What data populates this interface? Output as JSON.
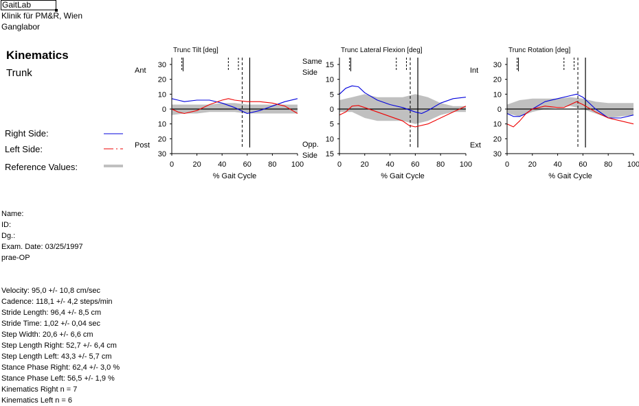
{
  "header": {
    "lab": "GaitLab",
    "clinic": "Klinik für PM&R, Wien",
    "department": "Ganglabor"
  },
  "section": {
    "title": "Kinematics",
    "subtitle": "Trunk"
  },
  "legend": {
    "right": "Right Side:",
    "left": "Left Side:",
    "reference": "Reference Values:"
  },
  "colors": {
    "right": "#0000dd",
    "left": "#ee0000",
    "reference": "#c0c0c0"
  },
  "patient": [
    "Name:",
    "ID:",
    "Dg.:",
    "Exam. Date: 03/25/1997",
    "prae-OP"
  ],
  "parameters": [
    "Velocity: 95,0 +/- 10,8 cm/sec",
    "Cadence: 118,1 +/- 4,2 steps/min",
    "Stride Length:  96,4 +/- 8,5 cm",
    "Stride Time:  1,02 +/- 0,04 sec",
    "Step Width: 20,6 +/- 6,6 cm",
    "Step Length Right:  52,7 +/- 6,4 cm",
    "Step Length Left:  43,3 +/- 5,7 cm",
    "Stance Phase Right:  62,4 +/- 3,0 %",
    "Stance Phase Left:  56,5 +/- 1,9 %",
    "Kinematics Right n = 7",
    "Kinematics Left n = 6"
  ],
  "chart_data": [
    {
      "type": "line",
      "title": "Trunc Tilt [deg]",
      "xlabel": "% Gait Cycle",
      "xlim": [
        0,
        100
      ],
      "ylim": [
        -30,
        30
      ],
      "yticks": [
        30,
        20,
        10,
        0,
        -10,
        -20,
        -30
      ],
      "ytick_labels": [
        "30",
        "20",
        "10",
        "0",
        "10",
        "20",
        "30"
      ],
      "xticks": [
        0,
        20,
        40,
        60,
        80,
        100
      ],
      "ylabel_top": [
        "Ant"
      ],
      "ylabel_bottom": [
        "Post"
      ],
      "vlines": {
        "short_solid": [
          9
        ],
        "short_dashed": [
          8,
          45,
          53
        ],
        "long_solid": [
          62
        ],
        "long_dashed": [
          56
        ]
      },
      "reference": {
        "x": [
          0,
          10,
          20,
          30,
          40,
          50,
          60,
          70,
          80,
          90,
          100
        ],
        "upper": [
          3,
          3,
          3,
          3,
          4,
          4,
          3,
          3,
          3,
          3,
          3
        ],
        "lower": [
          -4,
          -3,
          -3,
          -2,
          -2,
          -2,
          -3,
          -3,
          -3,
          -3,
          -3
        ]
      },
      "series": [
        {
          "name": "Right Side",
          "x": [
            0,
            5,
            10,
            20,
            30,
            40,
            50,
            55,
            60,
            70,
            80,
            90,
            100
          ],
          "values": [
            7,
            6,
            5,
            6,
            6,
            4,
            1,
            -1,
            -3,
            -1,
            2,
            5,
            7
          ]
        },
        {
          "name": "Left Side",
          "x": [
            0,
            5,
            10,
            20,
            30,
            40,
            45,
            50,
            60,
            70,
            80,
            90,
            100
          ],
          "values": [
            0,
            -2,
            -3,
            -1,
            3,
            6,
            7,
            6,
            5,
            5,
            4,
            2,
            -3
          ]
        }
      ]
    },
    {
      "type": "line",
      "title": "Trunc Lateral Flexion [deg]",
      "xlabel": "% Gait Cycle",
      "xlim": [
        0,
        100
      ],
      "ylim": [
        -15,
        15
      ],
      "yticks": [
        15,
        10,
        5,
        0,
        -5,
        -10,
        -15
      ],
      "ytick_labels": [
        "15",
        "10",
        "5",
        "0",
        "5",
        "10",
        "15"
      ],
      "xticks": [
        0,
        20,
        40,
        60,
        80,
        100
      ],
      "ylabel_top": [
        "Same",
        "Side"
      ],
      "ylabel_bottom": [
        "Opp.",
        "Side"
      ],
      "vlines": {
        "short_solid": [
          9
        ],
        "short_dashed": [
          8,
          45,
          53
        ],
        "long_solid": [
          62
        ],
        "long_dashed": [
          56
        ]
      },
      "reference": {
        "x": [
          0,
          10,
          20,
          30,
          40,
          50,
          60,
          70,
          80,
          90,
          100
        ],
        "upper": [
          3,
          4,
          5,
          4,
          4,
          4,
          5,
          4,
          2,
          1,
          1
        ],
        "lower": [
          -1,
          -1,
          -3,
          -4,
          -4,
          -4,
          -5,
          -4,
          -2,
          -1,
          -1
        ]
      },
      "series": [
        {
          "name": "Right Side",
          "x": [
            0,
            5,
            10,
            15,
            20,
            30,
            40,
            50,
            60,
            65,
            70,
            80,
            90,
            100
          ],
          "values": [
            5,
            7,
            7.8,
            7.5,
            5.5,
            3,
            1.5,
            0.5,
            -1,
            -1.5,
            -0.5,
            2,
            3.5,
            4
          ]
        },
        {
          "name": "Left Side",
          "x": [
            0,
            5,
            10,
            15,
            20,
            30,
            40,
            50,
            55,
            60,
            70,
            80,
            90,
            100
          ],
          "values": [
            -2,
            -1,
            1,
            1.2,
            0.5,
            -1,
            -2.5,
            -4,
            -5.5,
            -6,
            -5,
            -3,
            -1,
            1
          ]
        }
      ]
    },
    {
      "type": "line",
      "title": "Trunc Rotation [deg]",
      "xlabel": "% Gait Cycle",
      "xlim": [
        0,
        100
      ],
      "ylim": [
        -30,
        30
      ],
      "yticks": [
        30,
        20,
        10,
        0,
        -10,
        -20,
        -30
      ],
      "ytick_labels": [
        "30",
        "20",
        "10",
        "0",
        "10",
        "20",
        "30"
      ],
      "xticks": [
        0,
        20,
        40,
        60,
        80,
        100
      ],
      "ylabel_top": [
        "Int"
      ],
      "ylabel_bottom": [
        "Ext"
      ],
      "vlines": {
        "short_solid": [
          9
        ],
        "short_dashed": [
          8,
          45,
          53
        ],
        "long_solid": [
          62
        ],
        "long_dashed": [
          56
        ]
      },
      "reference": {
        "x": [
          0,
          10,
          20,
          30,
          40,
          50,
          60,
          70,
          80,
          90,
          100
        ],
        "upper": [
          3,
          6,
          7,
          7,
          7,
          8,
          7,
          5,
          4,
          4,
          4
        ],
        "lower": [
          -3,
          -5,
          -2,
          0,
          1,
          2,
          0,
          -3,
          -6,
          -5,
          -4
        ]
      },
      "series": [
        {
          "name": "Right Side",
          "x": [
            0,
            5,
            10,
            15,
            20,
            30,
            40,
            50,
            55,
            60,
            70,
            80,
            90,
            100
          ],
          "values": [
            -3,
            -5,
            -5,
            -3,
            0,
            5,
            7,
            9,
            10,
            8,
            0,
            -6,
            -6,
            -4
          ]
        },
        {
          "name": "Left Side",
          "x": [
            0,
            5,
            10,
            15,
            20,
            30,
            40,
            45,
            50,
            55,
            60,
            70,
            80,
            90,
            100
          ],
          "values": [
            -10,
            -12,
            -8,
            -3,
            0,
            2,
            1,
            1,
            3,
            5,
            3,
            -2,
            -6,
            -8,
            -10
          ]
        }
      ]
    }
  ]
}
